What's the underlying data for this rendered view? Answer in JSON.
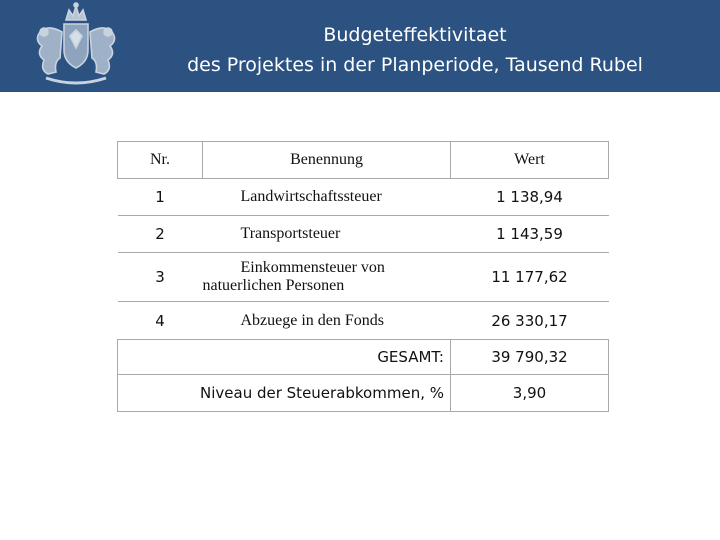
{
  "header": {
    "title_line1": "Budgeteffektivitaet",
    "title_line2": "des Projektes in der Planperiode, Tausend Rubel",
    "background_color": "#2c5281",
    "emblem_icon": "coat-of-arms-icon"
  },
  "table": {
    "headers": {
      "nr": "Nr.",
      "name": "Benennung",
      "value": "Wert"
    },
    "rows": [
      {
        "nr": "1",
        "name": "Landwirtschaftssteuer",
        "value": "1 138,94"
      },
      {
        "nr": "2",
        "name": "Transportsteuer",
        "value": "1 143,59"
      },
      {
        "nr": "3",
        "name_line1": "Einkommensteuer von",
        "name_line2": "natuerlichen Personen",
        "value": "11 177,62"
      },
      {
        "nr": "4",
        "name": "Abzuege in den Fonds",
        "value": "26 330,17"
      }
    ],
    "total": {
      "label": "GESAMT:",
      "value": "39 790,32"
    },
    "level": {
      "label": "Niveau der Steuerabkommen, %",
      "value": "3,90"
    }
  }
}
